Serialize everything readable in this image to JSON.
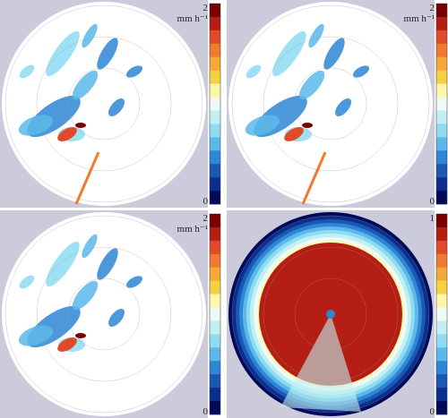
{
  "panels": [
    {
      "colorbar": {
        "max": "2",
        "unit": "mm h⁻¹",
        "min": "0"
      }
    },
    {
      "colorbar": {
        "max": "2",
        "unit": "mm h⁻¹",
        "min": "0"
      }
    },
    {
      "colorbar": {
        "max": "2",
        "unit": "mm h⁻¹",
        "min": "0"
      }
    },
    {
      "colorbar": {
        "max": "1",
        "min": "0"
      }
    }
  ],
  "colormap": [
    "#7a0000",
    "#b41e14",
    "#e04a28",
    "#f07a30",
    "#f5a838",
    "#f5d040",
    "#fff6a8",
    "#eefaf4",
    "#c2f0f2",
    "#8edcf2",
    "#5cb8ea",
    "#2e86d4",
    "#1a58b4",
    "#0c2e8c",
    "#020a5c"
  ]
}
